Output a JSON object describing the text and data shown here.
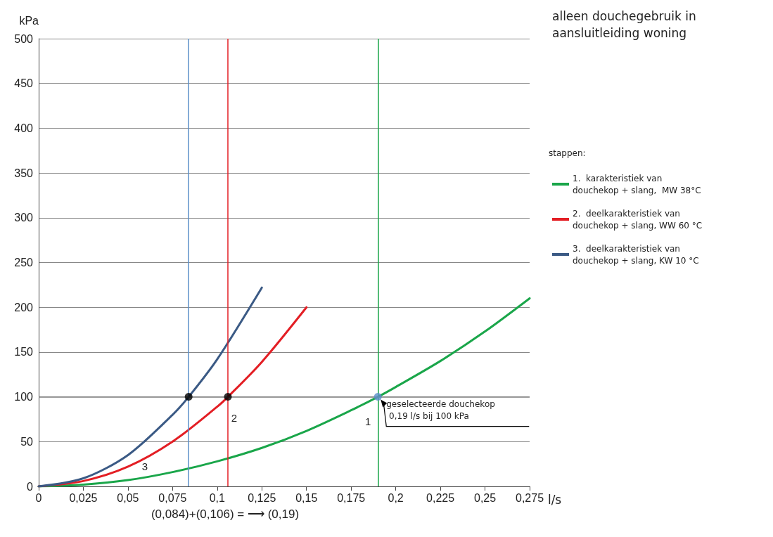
{
  "chart_data": {
    "type": "line",
    "title": "alleen douchegebruik in aansluitleiding woning",
    "xlabel": "l/s",
    "ylabel": "kPa",
    "legend_title": "stappen:",
    "legend": "right",
    "grid": "y",
    "marker": "none",
    "line_style": "solid",
    "xlim": [
      0,
      0.275
    ],
    "ylim": [
      0,
      500
    ],
    "xticks": [
      0,
      {
        "value": 0.025,
        "label": "0,025"
      },
      {
        "value": 0.05,
        "label": "0,05"
      },
      {
        "value": 0.075,
        "label": "0,075"
      },
      {
        "value": 0.1,
        "label": "0,1"
      },
      {
        "value": 0.125,
        "label": "0,125"
      },
      {
        "value": 0.15,
        "label": "0,15"
      },
      {
        "value": 0.175,
        "label": "0,175"
      },
      {
        "value": 0.2,
        "label": "0,2"
      },
      {
        "value": 0.225,
        "label": "0,225"
      },
      {
        "value": 0.25,
        "label": "0,25"
      },
      {
        "value": 0.275,
        "label": "0,275"
      }
    ],
    "yticks": [
      0,
      50,
      100,
      150,
      200,
      250,
      300,
      350,
      400,
      450,
      500
    ],
    "series": [
      {
        "name": "1.  karakteristiek van douchekop + slang,  MW 38°C",
        "color": "#1aa64a",
        "x": [
          0,
          0.025,
          0.05,
          0.075,
          0.1,
          0.125,
          0.15,
          0.175,
          0.19,
          0.2,
          0.225,
          0.25,
          0.275
        ],
        "values": [
          0,
          2,
          7,
          16,
          28,
          43,
          62,
          85,
          100,
          111,
          140,
          173,
          210
        ]
      },
      {
        "name": "2.  deelkarakteristiek van douchekop + slang, WW 60 °C",
        "color": "#e31e24",
        "x": [
          0,
          0.025,
          0.05,
          0.075,
          0.1,
          0.106,
          0.125,
          0.15
        ],
        "values": [
          0,
          6,
          22,
          50,
          89,
          100,
          139,
          200
        ]
      },
      {
        "name": "3.  deelkarakteristiek van douchekop + slang, KW 10 °C",
        "color": "#3b5a85",
        "x": [
          0,
          0.025,
          0.05,
          0.075,
          0.084,
          0.1,
          0.125
        ],
        "values": [
          0,
          9,
          35,
          80,
          100,
          142,
          222
        ]
      },
      {
        "type": "scatter",
        "marker": "circle",
        "x": [
          0.084,
          0.106,
          0.19
        ],
        "values": [
          100,
          100,
          100
        ],
        "colors": [
          "#000000",
          "#000000",
          "#5b8fc9"
        ]
      }
    ],
    "ref_lines": [
      {
        "axis": "x",
        "value": 0.084,
        "color": "#5b8fc9"
      },
      {
        "axis": "x",
        "value": 0.106,
        "color": "#e31e24"
      },
      {
        "axis": "x",
        "value": 0.19,
        "color": "#1aa64a"
      },
      {
        "axis": "y",
        "value": 100,
        "color": "#808080"
      }
    ],
    "annotations": [
      {
        "text": "1",
        "x": 0.175,
        "y": 85
      },
      {
        "text": "2",
        "x": 0.1,
        "y": 89
      },
      {
        "text": "3",
        "x": 0.05,
        "y": 35
      },
      {
        "text": "geselecteerde douchekop 0,19 l/s bij 100 kPa",
        "x": 0.19,
        "y": 100
      },
      "(0,084)+(0,106) = ⟶ (0,19)"
    ]
  }
}
